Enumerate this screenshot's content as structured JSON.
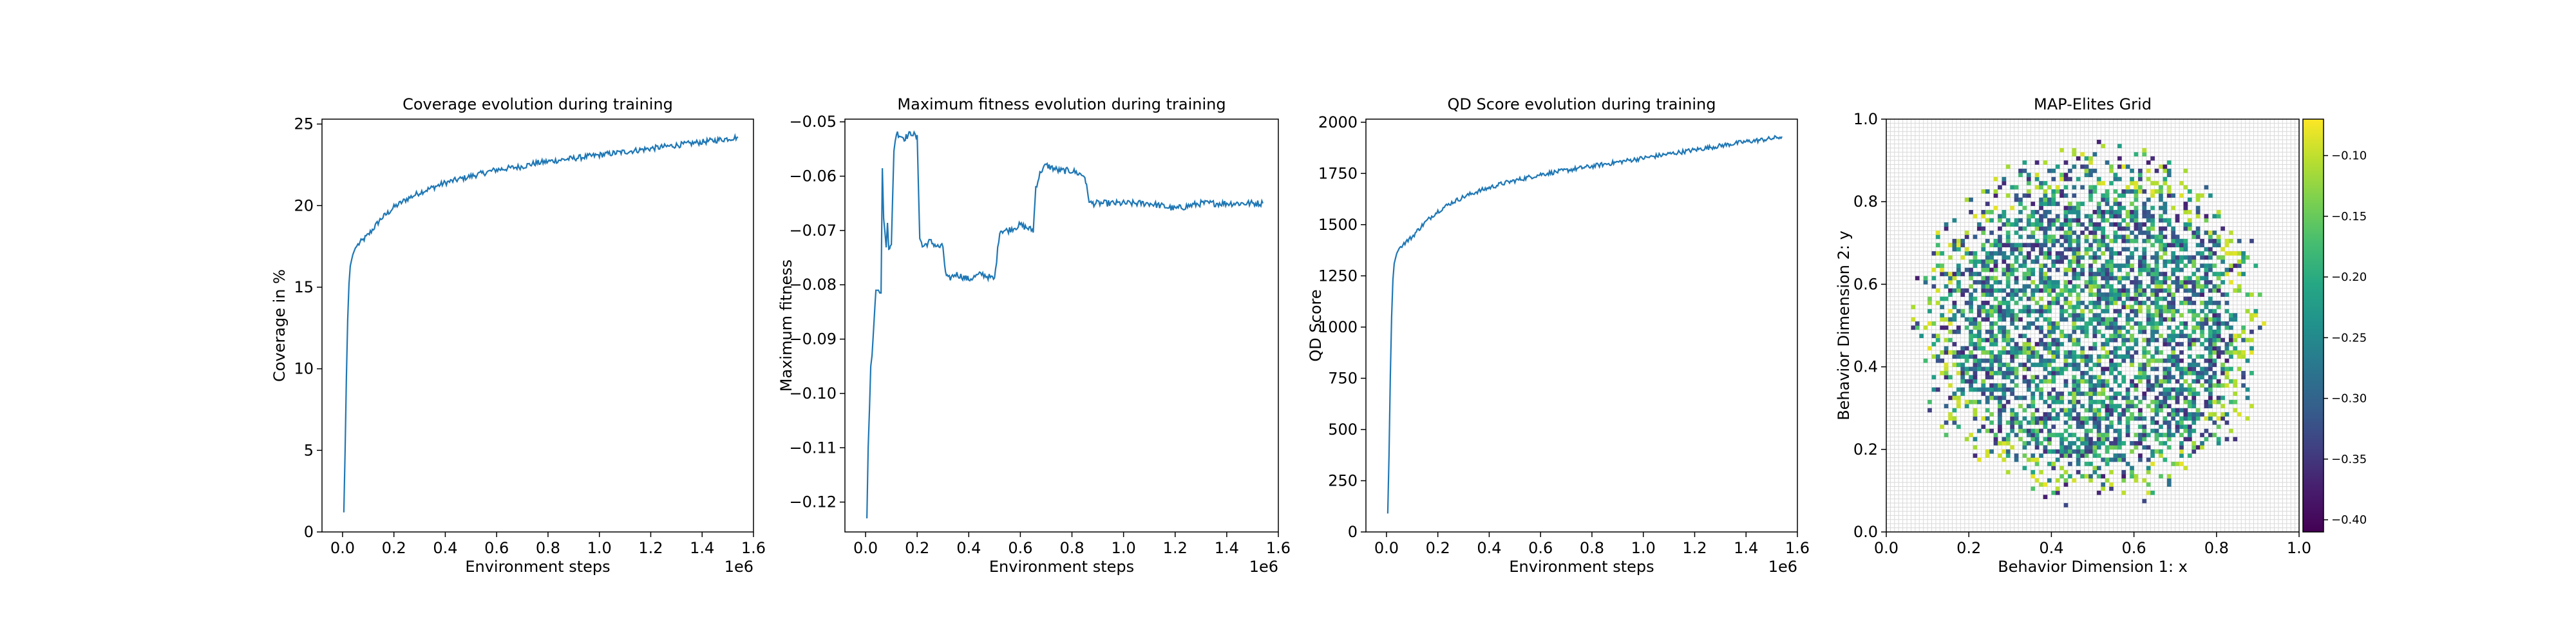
{
  "chart_data": [
    {
      "type": "line",
      "title": "Coverage evolution during training",
      "xlabel": "Environment steps",
      "ylabel": "Coverage in %",
      "x_scale_label": "1e6",
      "xlim": [
        -0.08,
        1.6
      ],
      "ylim": [
        0,
        25.3
      ],
      "xticks": [
        0.0,
        0.2,
        0.4,
        0.6,
        0.8,
        1.0,
        1.2,
        1.4,
        1.6
      ],
      "xtick_labels": [
        "0.0",
        "0.2",
        "0.4",
        "0.6",
        "0.8",
        "1.0",
        "1.2",
        "1.4",
        "1.6"
      ],
      "yticks": [
        0,
        5,
        10,
        15,
        20,
        25
      ],
      "ytick_labels": [
        "0",
        "5",
        "10",
        "15",
        "20",
        "25"
      ],
      "color": "#1f77b4",
      "grid": false,
      "series": [
        {
          "x": [
            0.005,
            0.01,
            0.015,
            0.02,
            0.025,
            0.03,
            0.04,
            0.05,
            0.06,
            0.08,
            0.1,
            0.12,
            0.15,
            0.18,
            0.2,
            0.25,
            0.3,
            0.35,
            0.4,
            0.45,
            0.5,
            0.55,
            0.6,
            0.65,
            0.7,
            0.75,
            0.8,
            0.85,
            0.9,
            0.95,
            1.0,
            1.05,
            1.1,
            1.15,
            1.2,
            1.25,
            1.3,
            1.35,
            1.4,
            1.45,
            1.5,
            1.54
          ],
          "y": [
            1.2,
            5.0,
            9.5,
            13.0,
            15.2,
            16.3,
            17.0,
            17.4,
            17.6,
            17.9,
            18.2,
            18.6,
            19.2,
            19.6,
            19.9,
            20.4,
            20.8,
            21.1,
            21.4,
            21.6,
            21.8,
            22.0,
            22.2,
            22.3,
            22.4,
            22.6,
            22.7,
            22.8,
            22.9,
            23.0,
            23.1,
            23.2,
            23.3,
            23.4,
            23.5,
            23.6,
            23.7,
            23.8,
            23.9,
            24.0,
            24.1,
            24.2
          ]
        }
      ]
    },
    {
      "type": "line",
      "title": "Maximum fitness evolution during training",
      "xlabel": "Environment steps",
      "ylabel": "Maximum fitness",
      "x_scale_label": "1e6",
      "xlim": [
        -0.08,
        1.6
      ],
      "ylim": [
        -0.1255,
        -0.0495
      ],
      "xticks": [
        0.0,
        0.2,
        0.4,
        0.6,
        0.8,
        1.0,
        1.2,
        1.4,
        1.6
      ],
      "xtick_labels": [
        "0.0",
        "0.2",
        "0.4",
        "0.6",
        "0.8",
        "1.0",
        "1.2",
        "1.4",
        "1.6"
      ],
      "yticks": [
        -0.12,
        -0.11,
        -0.1,
        -0.09,
        -0.08,
        -0.07,
        -0.06,
        -0.05
      ],
      "ytick_labels": [
        "−0.12",
        "−0.11",
        "−0.10",
        "−0.09",
        "−0.08",
        "−0.07",
        "−0.06",
        "−0.05"
      ],
      "color": "#1f77b4",
      "grid": false,
      "series": [
        {
          "x": [
            0.005,
            0.01,
            0.015,
            0.02,
            0.025,
            0.03,
            0.04,
            0.05,
            0.06,
            0.065,
            0.07,
            0.08,
            0.085,
            0.09,
            0.1,
            0.11,
            0.12,
            0.15,
            0.18,
            0.2,
            0.21,
            0.22,
            0.25,
            0.28,
            0.3,
            0.31,
            0.32,
            0.35,
            0.4,
            0.45,
            0.5,
            0.52,
            0.55,
            0.6,
            0.65,
            0.66,
            0.68,
            0.7,
            0.75,
            0.8,
            0.85,
            0.86,
            0.87,
            0.9,
            0.95,
            1.0,
            1.1,
            1.2,
            1.3,
            1.4,
            1.5,
            1.54
          ],
          "y": [
            -0.123,
            -0.11,
            -0.103,
            -0.095,
            -0.093,
            -0.089,
            -0.081,
            -0.081,
            -0.082,
            -0.058,
            -0.068,
            -0.073,
            -0.068,
            -0.073,
            -0.073,
            -0.055,
            -0.052,
            -0.053,
            -0.052,
            -0.053,
            -0.071,
            -0.073,
            -0.072,
            -0.073,
            -0.073,
            -0.078,
            -0.079,
            -0.078,
            -0.079,
            -0.078,
            -0.079,
            -0.07,
            -0.07,
            -0.069,
            -0.07,
            -0.062,
            -0.059,
            -0.058,
            -0.059,
            -0.059,
            -0.06,
            -0.063,
            -0.065,
            -0.065,
            -0.065,
            -0.065,
            -0.065,
            -0.066,
            -0.065,
            -0.065,
            -0.065,
            -0.065
          ]
        }
      ]
    },
    {
      "type": "line",
      "title": "QD Score evolution during training",
      "xlabel": "Environment steps",
      "ylabel": "QD Score",
      "x_scale_label": "1e6",
      "xlim": [
        -0.08,
        1.6
      ],
      "ylim": [
        0,
        2015
      ],
      "xticks": [
        0.0,
        0.2,
        0.4,
        0.6,
        0.8,
        1.0,
        1.2,
        1.4,
        1.6
      ],
      "xtick_labels": [
        "0.0",
        "0.2",
        "0.4",
        "0.6",
        "0.8",
        "1.0",
        "1.2",
        "1.4",
        "1.6"
      ],
      "yticks": [
        0,
        250,
        500,
        750,
        1000,
        1250,
        1500,
        1750,
        2000
      ],
      "ytick_labels": [
        "0",
        "250",
        "500",
        "750",
        "1000",
        "1250",
        "1500",
        "1750",
        "2000"
      ],
      "color": "#1f77b4",
      "grid": false,
      "series": [
        {
          "x": [
            0.005,
            0.01,
            0.015,
            0.02,
            0.025,
            0.03,
            0.04,
            0.05,
            0.06,
            0.08,
            0.1,
            0.12,
            0.15,
            0.18,
            0.2,
            0.25,
            0.3,
            0.35,
            0.4,
            0.45,
            0.5,
            0.55,
            0.6,
            0.65,
            0.7,
            0.75,
            0.8,
            0.85,
            0.9,
            0.95,
            1.0,
            1.05,
            1.1,
            1.15,
            1.2,
            1.25,
            1.3,
            1.35,
            1.4,
            1.45,
            1.5,
            1.54
          ],
          "y": [
            90,
            380,
            760,
            1050,
            1230,
            1310,
            1360,
            1385,
            1400,
            1420,
            1440,
            1470,
            1510,
            1545,
            1565,
            1605,
            1635,
            1660,
            1680,
            1700,
            1715,
            1730,
            1745,
            1755,
            1765,
            1775,
            1785,
            1795,
            1805,
            1815,
            1825,
            1835,
            1845,
            1855,
            1865,
            1875,
            1885,
            1895,
            1905,
            1912,
            1920,
            1930
          ]
        }
      ]
    },
    {
      "type": "heatmap",
      "title": "MAP-Elites Grid",
      "xlabel": "Behavior Dimension 1: x",
      "ylabel": "Behavior Dimension 2: y",
      "xlim": [
        0.0,
        1.0
      ],
      "ylim": [
        0.0,
        1.0
      ],
      "xticks": [
        0.0,
        0.2,
        0.4,
        0.6,
        0.8,
        1.0
      ],
      "xtick_labels": [
        "0.0",
        "0.2",
        "0.4",
        "0.6",
        "0.8",
        "1.0"
      ],
      "yticks": [
        0.0,
        0.2,
        0.4,
        0.6,
        0.8,
        1.0
      ],
      "ytick_labels": [
        "0.0",
        "0.2",
        "0.4",
        "0.6",
        "0.8",
        "1.0"
      ],
      "grid": true,
      "grid_cells": 100,
      "filled_region": {
        "center": [
          0.5,
          0.5
        ],
        "radius": 0.43
      },
      "fill_fraction": 0.55,
      "colormap": "viridis",
      "colorbar": {
        "vmin": -0.41,
        "vmax": -0.07,
        "ticks": [
          -0.1,
          -0.15,
          -0.2,
          -0.25,
          -0.3,
          -0.35,
          -0.4
        ],
        "tick_labels": [
          "−0.10",
          "−0.15",
          "−0.20",
          "−0.25",
          "−0.30",
          "−0.35",
          "−0.40"
        ]
      }
    }
  ]
}
